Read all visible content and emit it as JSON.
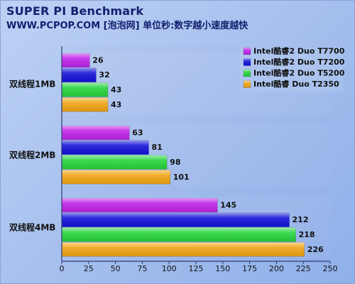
{
  "chart_data": {
    "type": "bar",
    "title": "SUPER PI Benchmark",
    "subtitle": "WWW.PCPOP.COM [泡泡网] 单位秒:数字越小速度越快",
    "categories": [
      "双线程1MB",
      "双线程2MB",
      "双线程4MB"
    ],
    "series": [
      {
        "name": "Intel酷睿2 Duo T7700",
        "values": [
          26,
          63,
          145
        ],
        "color": "#c023e8"
      },
      {
        "name": "Intel酷睿2 Duo T7200",
        "values": [
          32,
          81,
          212
        ],
        "color": "#1111d8"
      },
      {
        "name": "Intel酷睿2 Duo T5200",
        "values": [
          43,
          98,
          218
        ],
        "color": "#27d43c"
      },
      {
        "name": "Intel酷睿    Duo T2350",
        "values": [
          43,
          101,
          226
        ],
        "color": "#f1a514"
      }
    ],
    "x_ticks": [
      0,
      25,
      50,
      75,
      100,
      125,
      150,
      175,
      200,
      225,
      250
    ],
    "xlim": [
      0,
      250
    ],
    "grid": false,
    "legend_position": "top-right",
    "orientation": "horizontal"
  }
}
